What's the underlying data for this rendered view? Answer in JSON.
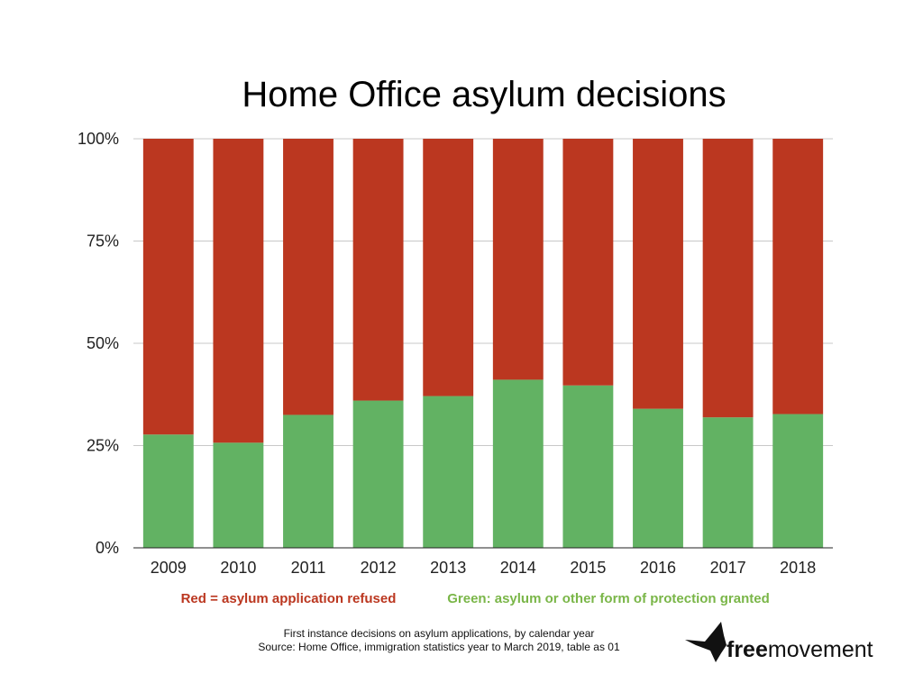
{
  "chart_data": {
    "type": "bar",
    "stacked": true,
    "title": "Home Office asylum decisions",
    "categories": [
      "2009",
      "2010",
      "2011",
      "2012",
      "2013",
      "2014",
      "2015",
      "2016",
      "2017",
      "2018"
    ],
    "series": [
      {
        "name": "Green: asylum or other form of protection granted",
        "color": "#62b263",
        "values": [
          27.7,
          25.7,
          32.5,
          36.0,
          37.1,
          41.1,
          39.7,
          34.0,
          31.9,
          32.7
        ]
      },
      {
        "name": "Red = asylum application refused",
        "color": "#bb3720",
        "values": [
          72.3,
          74.3,
          67.5,
          64.0,
          62.9,
          58.9,
          60.3,
          66.0,
          68.1,
          67.3
        ]
      }
    ],
    "ylim": [
      0,
      100
    ],
    "y_ticks": [
      "0%",
      "25%",
      "50%",
      "75%",
      "100%"
    ],
    "y_tick_values": [
      0,
      25,
      50,
      75,
      100
    ],
    "grid": true
  },
  "legend": {
    "red": {
      "text": "Red = asylum application refused",
      "color": "#bb3720"
    },
    "green": {
      "text": "Green: asylum or other form of protection granted",
      "color": "#7ab648"
    }
  },
  "footnote": {
    "line1": "First instance decisions on asylum applications, by calendar year",
    "line2": "Source: Home Office, immigration statistics year to March 2019, table as 01"
  },
  "brand": {
    "bold": "free",
    "rest": "movement",
    "icon": "bird-icon"
  }
}
